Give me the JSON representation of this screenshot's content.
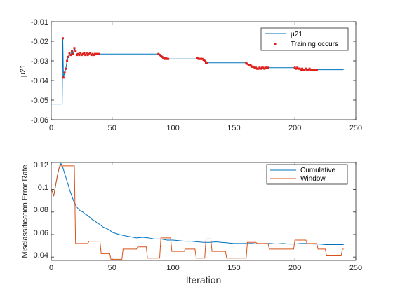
{
  "chart_data": [
    {
      "type": "line",
      "ylabel": "μ21",
      "xlim": [
        0,
        250
      ],
      "ylim": [
        -0.06,
        -0.01
      ],
      "x_ticks": [
        "0",
        "50",
        "100",
        "150",
        "200",
        "250"
      ],
      "y_ticks": [
        "-0.01",
        "-0.02",
        "-0.03",
        "-0.04",
        "-0.05",
        "-0.06"
      ],
      "legend": {
        "placement": "top-right",
        "entries": [
          "μ21",
          "Training occurs"
        ]
      },
      "series": [
        {
          "name": "μ21",
          "kind": "line",
          "color": "#0072BD",
          "x": [
            0,
            9,
            9.5,
            10,
            11,
            12,
            13,
            14,
            15,
            16,
            17,
            18,
            19,
            20,
            21,
            22,
            23,
            24,
            25,
            26,
            27,
            28,
            29,
            30,
            31,
            32,
            33,
            34,
            35,
            36,
            37,
            38,
            39,
            40,
            88,
            89,
            90,
            91,
            92,
            93,
            94,
            95,
            96,
            97,
            120,
            121,
            122,
            123,
            124,
            125,
            126,
            127,
            128,
            159,
            160,
            161,
            162,
            163,
            164,
            165,
            166,
            167,
            168,
            169,
            170,
            171,
            172,
            173,
            174,
            175,
            176,
            177,
            178,
            199,
            200,
            201,
            202,
            203,
            204,
            205,
            206,
            207,
            208,
            209,
            210,
            211,
            212,
            213,
            214,
            215,
            216,
            217,
            218,
            240
          ],
          "y": [
            -0.052,
            -0.052,
            -0.0185,
            -0.0385,
            -0.036,
            -0.034,
            -0.03,
            -0.028,
            -0.026,
            -0.027,
            -0.025,
            -0.0265,
            -0.0235,
            -0.025,
            -0.027,
            -0.0265,
            -0.027,
            -0.026,
            -0.027,
            -0.0265,
            -0.026,
            -0.027,
            -0.026,
            -0.027,
            -0.0265,
            -0.026,
            -0.027,
            -0.0265,
            -0.027,
            -0.0265,
            -0.0265,
            -0.0265,
            -0.0265,
            -0.0265,
            -0.0265,
            -0.0265,
            -0.027,
            -0.0275,
            -0.028,
            -0.0285,
            -0.029,
            -0.0285,
            -0.029,
            -0.029,
            -0.029,
            -0.0285,
            -0.029,
            -0.029,
            -0.029,
            -0.029,
            -0.0295,
            -0.03,
            -0.031,
            -0.031,
            -0.031,
            -0.0315,
            -0.032,
            -0.032,
            -0.0325,
            -0.033,
            -0.033,
            -0.0335,
            -0.0335,
            -0.034,
            -0.034,
            -0.0335,
            -0.034,
            -0.0335,
            -0.0335,
            -0.034,
            -0.0335,
            -0.0335,
            -0.0335,
            -0.0335,
            -0.0335,
            -0.034,
            -0.0335,
            -0.034,
            -0.034,
            -0.0345,
            -0.034,
            -0.0345,
            -0.0345,
            -0.034,
            -0.0345,
            -0.0345,
            -0.034,
            -0.0345,
            -0.0345,
            -0.0345,
            -0.0345,
            -0.0345,
            -0.0345,
            -0.0345
          ]
        },
        {
          "name": "Training occurs",
          "kind": "marker",
          "color": "#E0201B",
          "x": [
            9.5,
            10,
            11,
            12,
            13,
            14,
            15,
            16,
            17,
            18,
            19,
            20,
            21,
            22,
            23,
            24,
            25,
            26,
            27,
            28,
            29,
            30,
            31,
            32,
            33,
            34,
            35,
            36,
            37,
            38,
            39,
            88,
            89,
            90,
            91,
            92,
            93,
            94,
            95,
            96,
            120,
            121,
            122,
            123,
            124,
            125,
            126,
            127,
            128,
            160,
            161,
            162,
            163,
            164,
            165,
            166,
            167,
            168,
            169,
            170,
            171,
            172,
            173,
            174,
            175,
            176,
            177,
            178,
            200,
            201,
            202,
            203,
            204,
            205,
            206,
            207,
            208,
            209,
            210,
            211,
            212,
            213,
            214,
            215,
            216,
            217,
            218
          ],
          "y": [
            -0.0185,
            -0.0385,
            -0.036,
            -0.034,
            -0.03,
            -0.028,
            -0.026,
            -0.027,
            -0.025,
            -0.0265,
            -0.0235,
            -0.025,
            -0.027,
            -0.0265,
            -0.027,
            -0.026,
            -0.027,
            -0.0265,
            -0.026,
            -0.027,
            -0.026,
            -0.027,
            -0.0265,
            -0.026,
            -0.027,
            -0.0265,
            -0.027,
            -0.0265,
            -0.0265,
            -0.0265,
            -0.0265,
            -0.0265,
            -0.027,
            -0.0275,
            -0.028,
            -0.0285,
            -0.029,
            -0.0285,
            -0.029,
            -0.029,
            -0.0285,
            -0.029,
            -0.029,
            -0.029,
            -0.029,
            -0.0295,
            -0.03,
            -0.031,
            -0.031,
            -0.031,
            -0.0315,
            -0.032,
            -0.032,
            -0.0325,
            -0.033,
            -0.033,
            -0.0335,
            -0.0335,
            -0.034,
            -0.034,
            -0.0335,
            -0.034,
            -0.0335,
            -0.0335,
            -0.034,
            -0.0335,
            -0.0335,
            -0.0335,
            -0.0335,
            -0.034,
            -0.0335,
            -0.034,
            -0.034,
            -0.0345,
            -0.034,
            -0.0345,
            -0.0345,
            -0.034,
            -0.0345,
            -0.0345,
            -0.034,
            -0.0345,
            -0.0345,
            -0.0345,
            -0.0345,
            -0.0345,
            -0.0345
          ]
        }
      ]
    },
    {
      "type": "line",
      "xlabel": "Iteration",
      "ylabel": "Misclassification Error Rate",
      "xlim": [
        0,
        250
      ],
      "ylim": [
        0.037,
        0.124
      ],
      "x_ticks": [
        "0",
        "50",
        "100",
        "150",
        "200",
        "250"
      ],
      "y_ticks": [
        "0.12",
        "0.1",
        "0.08",
        "0.06",
        "0.04"
      ],
      "legend": {
        "placement": "top-right",
        "entries": [
          "Cumulative",
          "Window"
        ]
      },
      "series": [
        {
          "name": "Cumulative",
          "kind": "line",
          "color": "#0072BD",
          "x": [
            0,
            1,
            2,
            3,
            4,
            5,
            6,
            7,
            8,
            9,
            10,
            11,
            12,
            13,
            14,
            15,
            16,
            17,
            18,
            19,
            20,
            22,
            24,
            26,
            28,
            30,
            32,
            34,
            36,
            38,
            40,
            42,
            44,
            46,
            48,
            50,
            53,
            56,
            60,
            65,
            70,
            75,
            80,
            85,
            90,
            95,
            100,
            105,
            110,
            115,
            120,
            125,
            130,
            135,
            140,
            145,
            150,
            155,
            160,
            165,
            170,
            175,
            180,
            185,
            190,
            195,
            200,
            205,
            210,
            215,
            220,
            225,
            230,
            235,
            240
          ],
          "y": [
            0.1,
            0.098,
            0.094,
            0.1,
            0.106,
            0.112,
            0.117,
            0.121,
            0.123,
            0.121,
            0.118,
            0.114,
            0.111,
            0.107,
            0.104,
            0.1,
            0.097,
            0.094,
            0.091,
            0.088,
            0.086,
            0.083,
            0.081,
            0.08,
            0.078,
            0.077,
            0.075,
            0.073,
            0.072,
            0.07,
            0.069,
            0.067,
            0.066,
            0.065,
            0.064,
            0.062,
            0.061,
            0.06,
            0.059,
            0.058,
            0.057,
            0.0575,
            0.057,
            0.056,
            0.056,
            0.055,
            0.055,
            0.0545,
            0.054,
            0.054,
            0.0535,
            0.053,
            0.053,
            0.0535,
            0.053,
            0.0525,
            0.052,
            0.052,
            0.052,
            0.052,
            0.0515,
            0.052,
            0.052,
            0.0515,
            0.052,
            0.0515,
            0.0515,
            0.052,
            0.052,
            0.0515,
            0.0515,
            0.051,
            0.051,
            0.051,
            0.051
          ]
        },
        {
          "name": "Window",
          "kind": "line",
          "color": "#D95319",
          "x": [
            0,
            1,
            2,
            3,
            4,
            5,
            6,
            7,
            8,
            9,
            10,
            19,
            20,
            30,
            31,
            40,
            41,
            48,
            49,
            58,
            59,
            70,
            71,
            78,
            79,
            89,
            90,
            98,
            99,
            109,
            110,
            118,
            119,
            126,
            127,
            131,
            132,
            143,
            144,
            160,
            161,
            168,
            169,
            178,
            179,
            199,
            200,
            209,
            210,
            218,
            219,
            225,
            226,
            238,
            239,
            240
          ],
          "y": [
            0.1,
            0.098,
            0.094,
            0.1,
            0.106,
            0.112,
            0.117,
            0.121,
            0.121,
            0.121,
            0.121,
            0.121,
            0.052,
            0.052,
            0.054,
            0.054,
            0.043,
            0.043,
            0.038,
            0.038,
            0.047,
            0.047,
            0.049,
            0.049,
            0.039,
            0.039,
            0.057,
            0.057,
            0.045,
            0.045,
            0.047,
            0.047,
            0.039,
            0.039,
            0.056,
            0.056,
            0.045,
            0.045,
            0.039,
            0.039,
            0.053,
            0.053,
            0.052,
            0.052,
            0.047,
            0.047,
            0.055,
            0.055,
            0.052,
            0.052,
            0.047,
            0.047,
            0.041,
            0.041,
            0.047,
            0.047
          ]
        }
      ]
    }
  ]
}
